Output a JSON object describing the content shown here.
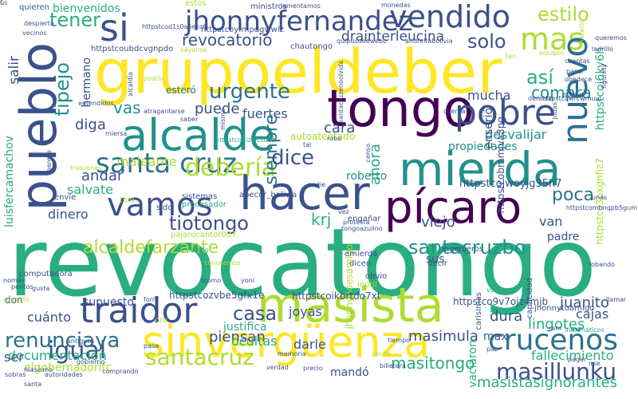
{
  "palette": {
    "dark_purple": "#440154",
    "indigo": "#3b518b",
    "blue": "#2c718e",
    "teal": "#21918c",
    "green": "#28ae80",
    "lime": "#5ec962",
    "yellow_green": "#addc30",
    "yellow": "#fde725"
  },
  "words": [
    {
      "text": "revocatongo",
      "color": "#28ae80"
    },
    {
      "text": "grupoeldeber",
      "color": "#fde725"
    },
    {
      "text": "tongo",
      "color": "#440154"
    },
    {
      "text": "mierda",
      "color": "#21918c"
    },
    {
      "text": "hacer",
      "color": "#3b518b"
    },
    {
      "text": "pícaro",
      "color": "#440154"
    },
    {
      "text": "alcalde",
      "color": "#21918c"
    },
    {
      "text": "pueblo",
      "color": "#3b518b"
    },
    {
      "text": "sinvergüenza",
      "color": "#fde725"
    },
    {
      "text": "masista",
      "color": "#addc30"
    },
    {
      "text": "traidor",
      "color": "#3b518b"
    },
    {
      "text": "pobre",
      "color": "#3b518b"
    },
    {
      "text": "vendido",
      "color": "#3b518b"
    },
    {
      "text": "si",
      "color": "#3b518b"
    },
    {
      "text": "mas",
      "color": "#addc30"
    },
    {
      "text": "nuevo",
      "color": "#2c718e"
    },
    {
      "text": "jhonnyfernandez",
      "color": "#3b518b"
    },
    {
      "text": "vamos",
      "color": "#3b518b"
    },
    {
      "text": "santa cruz",
      "color": "#2c718e"
    },
    {
      "text": "cruceños",
      "color": "#2c718e"
    },
    {
      "text": "masillunku",
      "color": "#3b518b"
    },
    {
      "text": "santacruz",
      "color": "#addc30"
    },
    {
      "text": "igual",
      "color": "#3b518b"
    },
    {
      "text": "renunciaya",
      "color": "#2c718e"
    },
    {
      "text": "tiotongo",
      "color": "#3b518b"
    },
    {
      "text": "alcaldefarzante",
      "color": "#addc30"
    },
    {
      "text": "santacruzbo",
      "color": "#21918c"
    },
    {
      "text": "debería",
      "color": "#addc30"
    },
    {
      "text": "siempre",
      "color": "#2c718e"
    },
    {
      "text": "dice",
      "color": "#3b518b"
    },
    {
      "text": "casa",
      "color": "#3b518b"
    },
    {
      "text": "urgente",
      "color": "#2c718e"
    },
    {
      "text": "estilo",
      "color": "#addc30"
    },
    {
      "text": "solo",
      "color": "#3b518b"
    },
    {
      "text": "así",
      "color": "#28ae80"
    },
    {
      "text": "compra",
      "color": "#21918c"
    },
    {
      "text": "tener",
      "color": "#28ae80"
    },
    {
      "text": "revocatorio",
      "color": "#3b518b"
    },
    {
      "text": "drainterleucina",
      "color": "#3b518b"
    },
    {
      "text": "tipejo",
      "color": "#21918c"
    },
    {
      "text": "salir",
      "color": "#3b518b"
    },
    {
      "text": "hermano",
      "color": "#3b518b"
    },
    {
      "text": "vas",
      "color": "#21918c"
    },
    {
      "text": "diga",
      "color": "#3b518b"
    },
    {
      "text": "puede",
      "color": "#3b518b"
    },
    {
      "text": "fuertes",
      "color": "#3b518b"
    },
    {
      "text": "mucha",
      "color": "#3b518b"
    },
    {
      "text": "cara",
      "color": "#3b518b"
    },
    {
      "text": "desvalijar",
      "color": "#21918c"
    },
    {
      "text": "propiedades",
      "color": "#21918c"
    },
    {
      "text": "ahora",
      "color": "#28ae80"
    },
    {
      "text": "poca",
      "color": "#2c718e"
    },
    {
      "text": "van",
      "color": "#3b518b"
    },
    {
      "text": "padre",
      "color": "#3b518b"
    },
    {
      "text": "viejo",
      "color": "#3b518b"
    },
    {
      "text": "krj",
      "color": "#28ae80"
    },
    {
      "text": "dinero",
      "color": "#3b518b"
    },
    {
      "text": "andar",
      "color": "#3b518b"
    },
    {
      "text": "maleante",
      "color": "#addc30"
    },
    {
      "text": "salvate",
      "color": "#28ae80"
    },
    {
      "text": "juanito",
      "color": "#3b518b"
    },
    {
      "text": "cajas",
      "color": "#3b518b"
    },
    {
      "text": "lingotes",
      "color": "#28ae80"
    },
    {
      "text": "dura",
      "color": "#3b518b"
    },
    {
      "text": "joyas",
      "color": "#3b518b"
    },
    {
      "text": "masimula",
      "color": "#3b518b"
    },
    {
      "text": "masitongo",
      "color": "#28ae80"
    },
    {
      "text": "masistasignorantes",
      "color": "#28ae80"
    },
    {
      "text": "fallecimiento",
      "color": "#28ae80"
    },
    {
      "text": "max",
      "color": "#3b518b"
    },
    {
      "text": "vaciaron",
      "color": "#28ae80"
    },
    {
      "text": "piensan",
      "color": "#3b518b"
    },
    {
      "text": "darle",
      "color": "#3b518b"
    },
    {
      "text": "documentación",
      "color": "#28ae80"
    },
    {
      "text": "elgobernadorlfc",
      "color": "#addc30"
    },
    {
      "text": "ser",
      "color": "#3b518b"
    },
    {
      "text": "mandó",
      "color": "#3b518b"
    },
    {
      "text": "ocultas",
      "color": "#28ae80"
    },
    {
      "text": "justifica",
      "color": "#28ae80"
    },
    {
      "text": "cuánto",
      "color": "#3b518b"
    },
    {
      "text": "don",
      "color": "#3b518b"
    },
    {
      "text": "supuesto",
      "color": "#3b518b"
    },
    {
      "text": "luisfercamachov",
      "color": "#28ae80"
    },
    {
      "text": "enserió",
      "color": "#3b518b"
    },
    {
      "text": "bienvenidos",
      "color": "#28ae80"
    },
    {
      "text": "roberto",
      "color": "#21918c"
    },
    {
      "text": "esteró",
      "color": "#2c718e"
    },
    {
      "text": "autoatentado",
      "color": "#addc30"
    },
    {
      "text": "jhonnynoesamigo",
      "color": "#addc30"
    },
    {
      "text": "ingenieros",
      "color": "#3b518b"
    },
    {
      "text": "httpstcoi6ky6h",
      "color": "#28ae80"
    },
    {
      "text": "httpstcobmmjva3pg",
      "color": "#3b518b"
    },
    {
      "text": "httpstcojwoyjg35h7",
      "color": "#3b518b"
    },
    {
      "text": "httpstco3pxgnfiz7",
      "color": "#addc30"
    },
    {
      "text": "httpstcozvbe5gfx1e",
      "color": "#3b518b"
    },
    {
      "text": "httpstcoikbrtdo7xt",
      "color": "#3b518b"
    },
    {
      "text": "httpstco9v7ojz4mjb",
      "color": "#3b518b"
    },
    {
      "text": "httpstcoubdcvgnpdo",
      "color": "#3b518b"
    },
    {
      "text": "httpstcoyfmpdgwwlz",
      "color": "#3b518b"
    },
    {
      "text": "pajarocantor007",
      "color": "#addc30"
    },
    {
      "text": "sistemas",
      "color": "#3b518b"
    },
    {
      "text": "procesador",
      "color": "#28ae80"
    },
    {
      "text": "engañar",
      "color": "#3b518b"
    },
    {
      "text": "dicen",
      "color": "#3b518b"
    },
    {
      "text": "decir",
      "color": "#3b518b"
    },
    {
      "text": "obvio",
      "color": "#3b518b"
    },
    {
      "text": "emierda",
      "color": "#3b518b"
    },
    {
      "text": "inútil",
      "color": "#addc30"
    },
    {
      "text": "carisimas",
      "color": "#3b518b"
    },
    {
      "text": "jhonnytuamigo",
      "color": "#3b518b"
    },
    {
      "text": "capacidad",
      "color": "#3b518b"
    },
    {
      "text": "robando",
      "color": "#3b518b"
    },
    {
      "text": "llamar",
      "color": "#3b518b"
    },
    {
      "text": "vulnerar",
      "color": "#28ae80"
    },
    {
      "text": "informáticos",
      "color": "#28ae80"
    },
    {
      "text": "ram",
      "color": "#3b518b"
    },
    {
      "text": "irse",
      "color": "#3b518b"
    },
    {
      "text": "billetera",
      "color": "#3b518b"
    },
    {
      "text": "verdad",
      "color": "#3b518b"
    },
    {
      "text": "precio",
      "color": "#3b518b"
    },
    {
      "text": "memoria",
      "color": "#3b518b"
    },
    {
      "text": "pasa",
      "color": "#3b518b"
    },
    {
      "text": "comprando",
      "color": "#3b518b"
    },
    {
      "text": "gobierno",
      "color": "#3b518b"
    },
    {
      "text": "antiguos",
      "color": "#3b518b"
    },
    {
      "text": "oro",
      "color": "#addc30"
    },
    {
      "text": "forra",
      "color": "#3b518b"
    },
    {
      "text": "computadora",
      "color": "#3b518b"
    },
    {
      "text": "peritos",
      "color": "#3b518b"
    },
    {
      "text": "nomás",
      "color": "#3b518b"
    },
    {
      "text": "gusta",
      "color": "#3b518b"
    },
    {
      "text": "correcto",
      "color": "#addc30"
    },
    {
      "text": "autoridades",
      "color": "#3b518b"
    },
    {
      "text": "sobras",
      "color": "#3b518b"
    },
    {
      "text": "tcomo",
      "color": "#3b518b"
    },
    {
      "text": "yoni",
      "color": "#3b518b"
    },
    {
      "text": "conocemos",
      "color": "#addc30"
    },
    {
      "text": "declarado",
      "color": "#28ae80"
    },
    {
      "text": "sido",
      "color": "#3b518b"
    },
    {
      "text": "tilin",
      "color": "#addc30"
    },
    {
      "text": "envíe",
      "color": "#3b518b"
    },
    {
      "text": "traiciones",
      "color": "#addc30"
    },
    {
      "text": "abecor_bolivia",
      "color": "#3b518b"
    },
    {
      "text": "httpstcohiz9icsu0z",
      "color": "#28ae80"
    },
    {
      "text": "tal",
      "color": "#3b518b"
    },
    {
      "text": "robo",
      "color": "#3b518b"
    },
    {
      "text": "nadie",
      "color": "#3b518b"
    },
    {
      "text": "protesta",
      "color": "#3b518b"
    },
    {
      "text": "tongoazulino",
      "color": "#3b518b"
    },
    {
      "text": "httpstcombnqpb5gum",
      "color": "#3b518b"
    },
    {
      "text": "unas",
      "color": "#3b518b"
    },
    {
      "text": "quieren",
      "color": "#3b518b"
    },
    {
      "text": "despierta",
      "color": "#3b518b"
    },
    {
      "text": "vecinos",
      "color": "#3b518b"
    },
    {
      "text": "estos",
      "color": "#addc30"
    },
    {
      "text": "httpstcod1s0a6ekc6",
      "color": "#3b518b"
    },
    {
      "text": "ministros",
      "color": "#3b518b"
    },
    {
      "text": "lamentamos",
      "color": "#3b518b"
    },
    {
      "text": "monedas",
      "color": "#3b518b"
    },
    {
      "text": "quipusdeewebo",
      "color": "#3b518b"
    },
    {
      "text": "andreitabolivia",
      "color": "#3b518b"
    },
    {
      "text": "queremos",
      "color": "#3b518b"
    },
    {
      "text": "hacerlo",
      "color": "#addc30"
    },
    {
      "text": "ladrillo",
      "color": "#3b518b"
    },
    {
      "text": "váyanse",
      "color": "#addc30"
    },
    {
      "text": "chautongo",
      "color": "#3b518b"
    },
    {
      "text": "santacruzenoolvida",
      "color": "#3b518b"
    },
    {
      "text": "tan",
      "color": "#addc30"
    },
    {
      "text": "equipos",
      "color": "#addc30"
    },
    {
      "text": "cuantas",
      "color": "#3b518b"
    },
    {
      "text": "pasar",
      "color": "#3b518b"
    },
    {
      "text": "obedece",
      "color": "#3b518b"
    },
    {
      "text": "figurety",
      "color": "#3b518b"
    },
    {
      "text": "derecho",
      "color": "#3b518b"
    },
    {
      "text": "httpstcowrcwmuuj",
      "color": "#3b518b"
    },
    {
      "text": "quipus",
      "color": "#3b518b"
    },
    {
      "text": "judas",
      "color": "#3b518b"
    },
    {
      "text": "cuenta",
      "color": "#3b518b"
    },
    {
      "text": "atragantarse",
      "color": "#3b518b"
    },
    {
      "text": "saber",
      "color": "#3b518b"
    },
    {
      "text": "mismo",
      "color": "#3b518b"
    },
    {
      "text": "entendidos",
      "color": "#3b518b"
    },
    {
      "text": "podría",
      "color": "#addc30"
    },
    {
      "text": "alcaldía",
      "color": "#3b518b"
    },
    {
      "text": "miersa",
      "color": "#3b518b"
    },
    {
      "text": "merece",
      "color": "#3b518b"
    },
    {
      "text": "censo",
      "color": "#3b518b"
    },
    {
      "text": "vez",
      "color": "#3b518b"
    },
    {
      "text": "tiempo",
      "color": "#3b518b"
    },
    {
      "text": "chiste",
      "color": "#addc30"
    },
    {
      "text": "paz",
      "color": "#3b518b"
    },
    {
      "text": "pagar",
      "color": "#3b518b"
    },
    {
      "text": "masismo",
      "color": "#3b518b"
    },
    {
      "text": "santa",
      "color": "#3b518b"
    },
    {
      "text": "sus",
      "color": "#3b518b"
    },
    {
      "text": "us",
      "color": "#3b518b"
    },
    {
      "text": "f",
      "color": "#3b518b"
    }
  ]
}
